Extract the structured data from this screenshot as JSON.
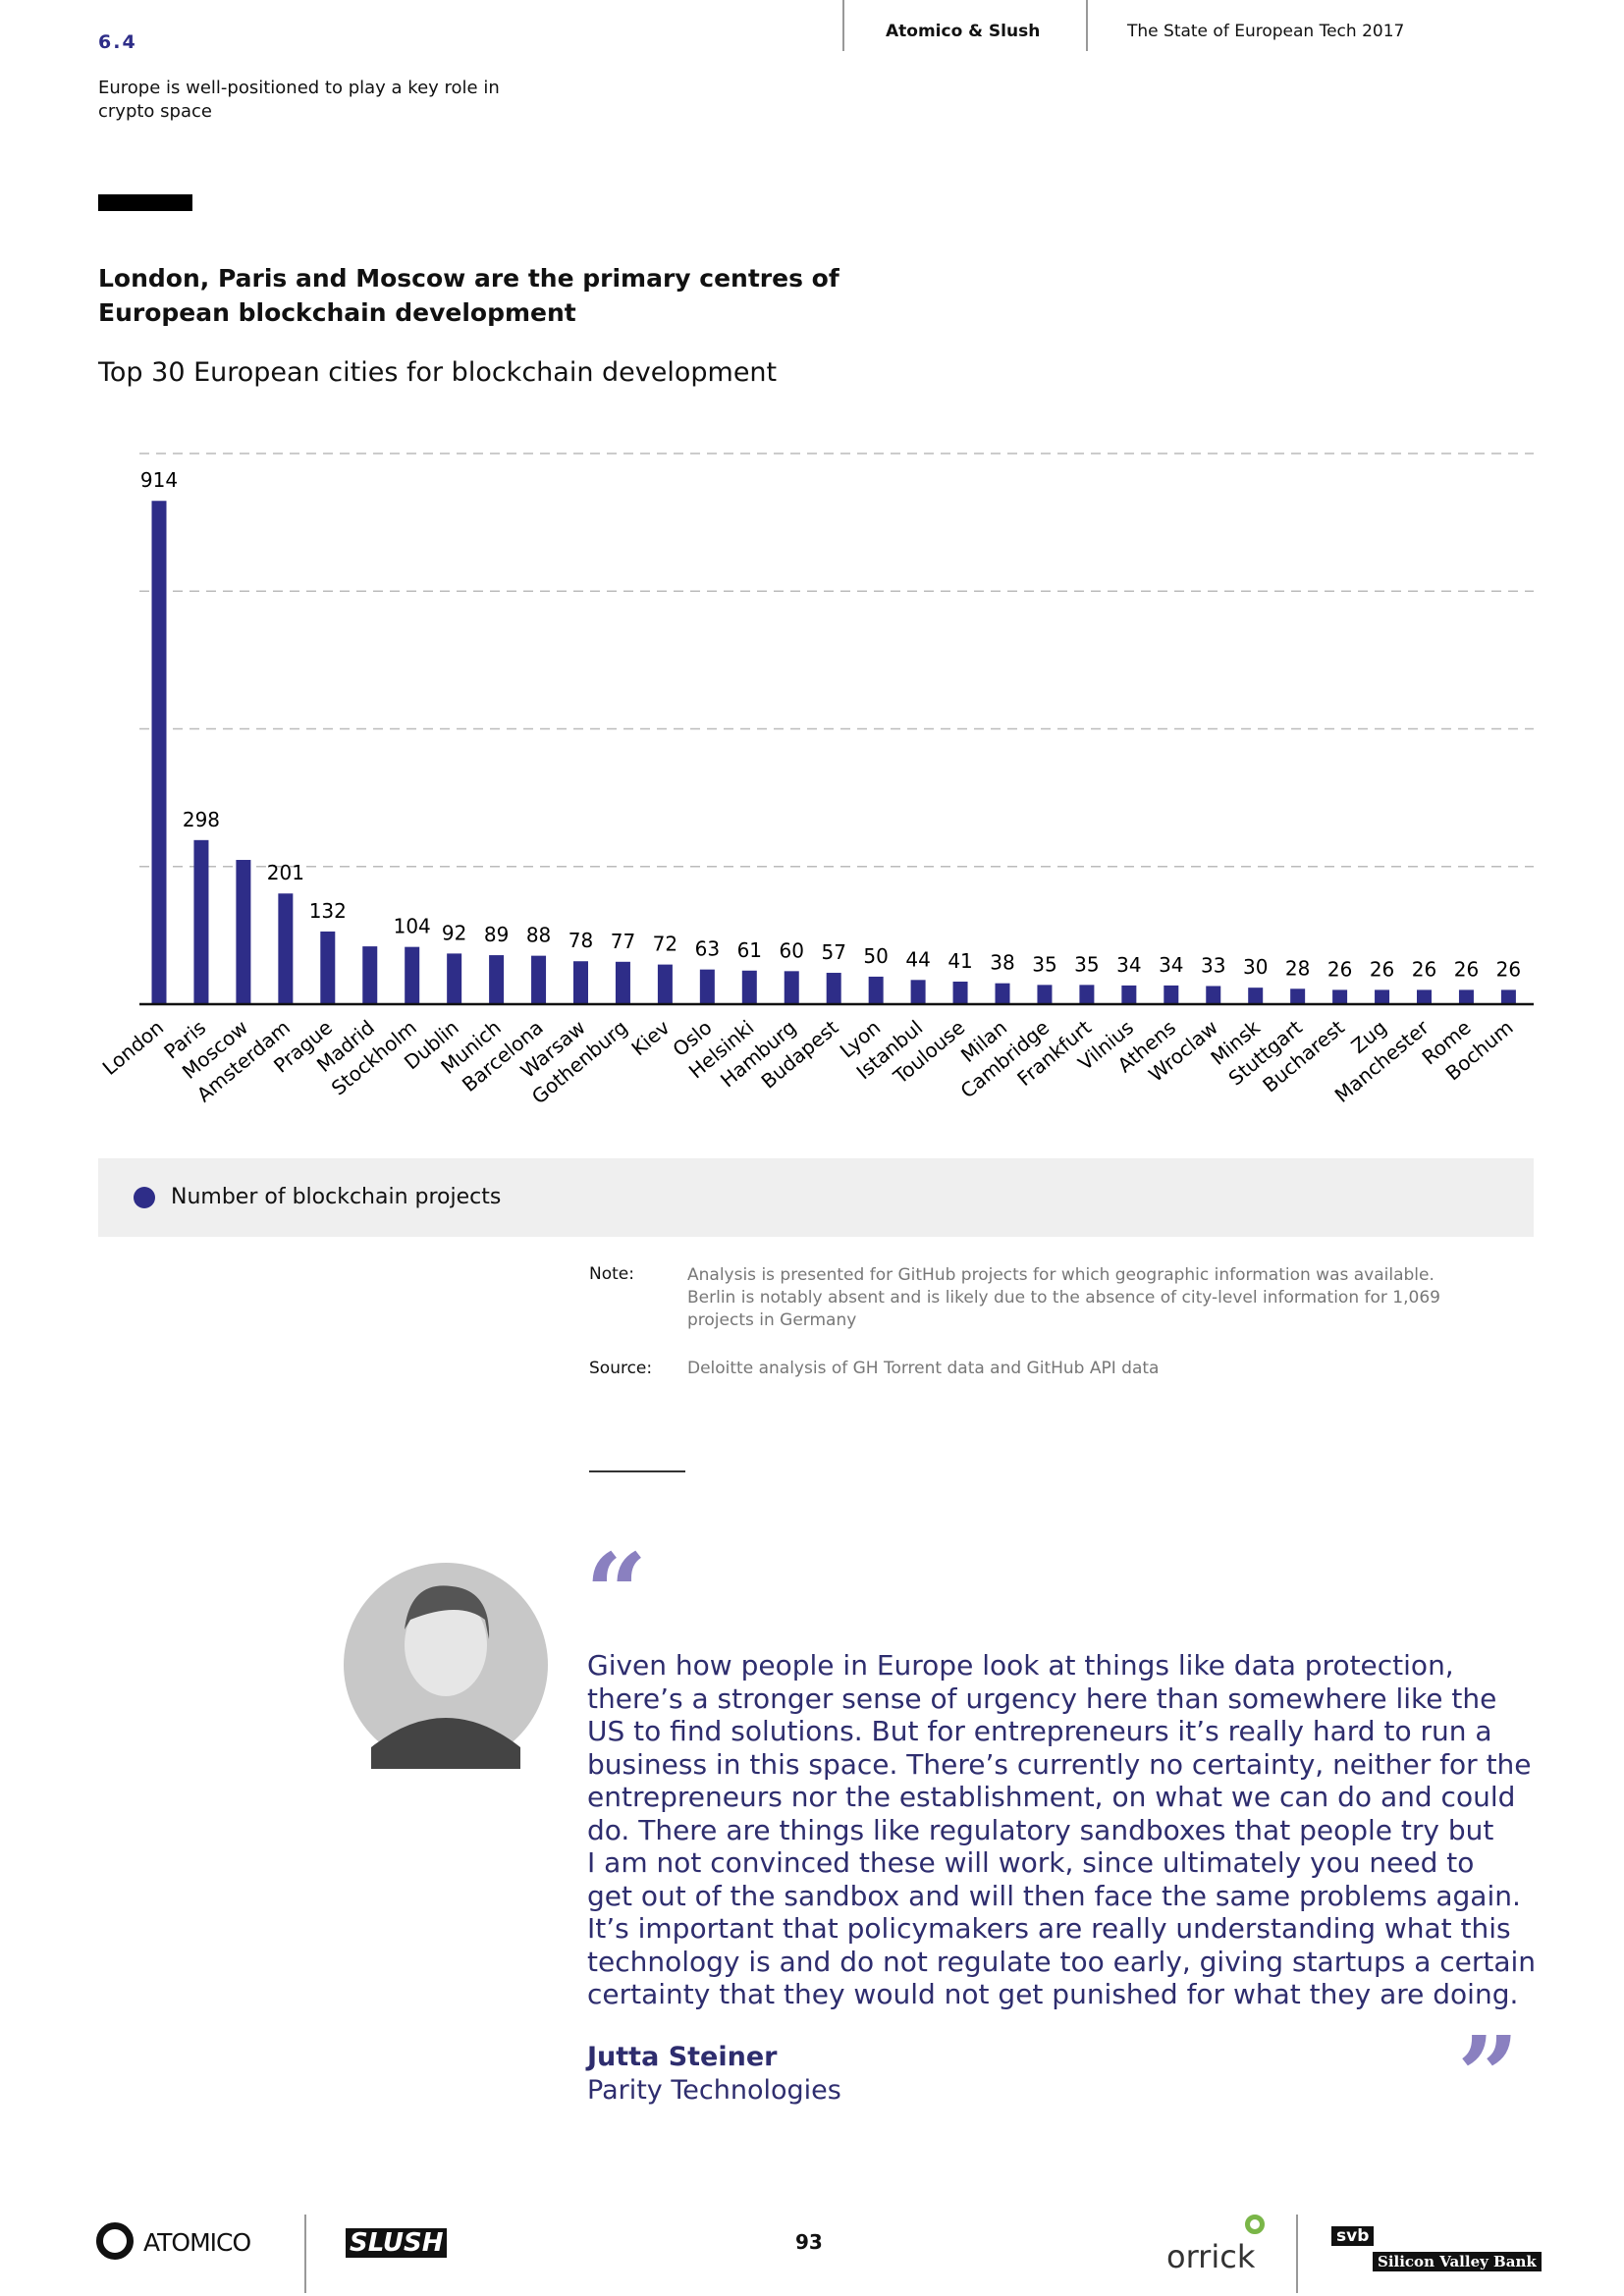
{
  "header": {
    "section": "6.4",
    "section_title": "Europe is well-positioned to play a key role in crypto space",
    "publisher": "Atomico & Slush",
    "report": "The State of European Tech 2017"
  },
  "chart_data": {
    "type": "bar",
    "title": "London, Paris and Moscow are the primary centres of European blockchain development",
    "subtitle": "Top 30 European cities for blockchain development",
    "categories": [
      "London",
      "Paris",
      "Moscow",
      "Amsterdam",
      "Prague",
      "Madrid",
      "Stockholm",
      "Dublin",
      "Munich",
      "Barcelona",
      "Warsaw",
      "Gothenburg",
      "Kiev",
      "Oslo",
      "Helsinki",
      "Hamburg",
      "Budapest",
      "Lyon",
      "Istanbul",
      "Toulouse",
      "Milan",
      "Cambridge",
      "Frankfurt",
      "Vilnius",
      "Athens",
      "Wroclaw",
      "Minsk",
      "Stuttgart",
      "Bucharest",
      "Zug",
      "Manchester",
      "Rome",
      "Bochum"
    ],
    "series": [
      {
        "name": "Number of blockchain projects",
        "color": "#2e2d88",
        "values": [
          914,
          298,
          262,
          201,
          132,
          105,
          104,
          92,
          89,
          88,
          78,
          77,
          72,
          63,
          61,
          60,
          57,
          50,
          44,
          41,
          38,
          35,
          35,
          34,
          34,
          33,
          30,
          28,
          26,
          26,
          26,
          26,
          26
        ],
        "value_labels": [
          914,
          298,
          null,
          201,
          132,
          null,
          104,
          92,
          89,
          88,
          78,
          77,
          72,
          63,
          61,
          60,
          57,
          50,
          44,
          41,
          38,
          35,
          35,
          34,
          34,
          33,
          30,
          28,
          26,
          26,
          26,
          26,
          26
        ]
      }
    ],
    "ylim": [
      0,
      1000
    ],
    "yticks": [
      0,
      250,
      500,
      750,
      1000
    ],
    "grid": true
  },
  "note": {
    "label": "Note:",
    "text": "Analysis is presented for GitHub projects for which geographic information was available. Berlin is notably absent and is likely due to the absence of city-level information for 1,069 projects in Germany"
  },
  "source": {
    "label": "Source:",
    "text": "Deloitte analysis of GH Torrent data and GitHub API data"
  },
  "quote": {
    "lines": [
      "Given how people in Europe look at things like data protection,",
      "there’s a stronger sense of urgency here than somewhere like the",
      "US to find solutions. But for entrepreneurs it’s really hard to run a",
      "business in this space. There’s currently no certainty, neither for the",
      "entrepreneurs nor the establishment, on what we can do and could",
      "do. There are things like regulatory sandboxes that people try but",
      "I am not convinced these will work, since ultimately you need to",
      "get out of the sandbox and will then face the same problems again.",
      "It’s important that policymakers are really understanding what this",
      "technology is and do not regulate too early, giving startups a certain",
      "certainty that they would not get punished for what they are doing."
    ],
    "author": "Jutta Steiner",
    "company": "Parity Technologies"
  },
  "footer": {
    "page": "93",
    "logos": [
      "ATOMICO",
      "SLUSH",
      "orrick",
      "svb",
      "Silicon Valley Bank"
    ]
  }
}
